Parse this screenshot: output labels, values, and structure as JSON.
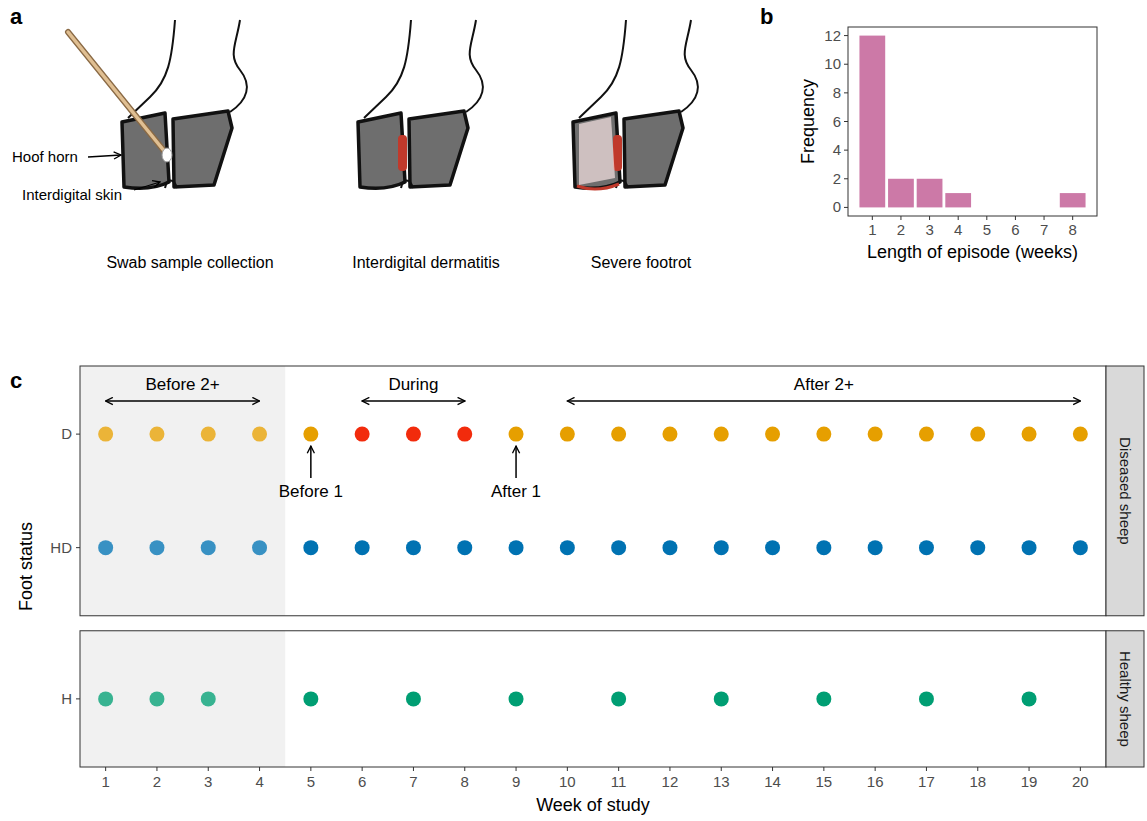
{
  "diagram": {
    "panel_label": "a",
    "labels": [
      "Hoof horn",
      "Interdigital skin"
    ],
    "captions": [
      "Swab sample collection",
      "Interdigital dermatitis",
      "Severe footrot"
    ]
  },
  "chart_data": [
    {
      "panel_label": "b",
      "type": "bar",
      "x": [
        1,
        2,
        3,
        4,
        5,
        6,
        7,
        8
      ],
      "values": [
        12,
        2,
        2,
        1,
        0,
        0,
        0,
        1
      ],
      "color": "#CC79A7",
      "x_label": "Length of episode (weeks)",
      "y_label": "Frequency",
      "xlim": [
        0.15,
        8.85
      ],
      "xticks": [
        1,
        2,
        3,
        4,
        5,
        6,
        7,
        8
      ],
      "ylim": [
        -0.6,
        12.6
      ],
      "yticks": [
        0,
        2,
        4,
        6,
        8,
        10,
        12
      ],
      "grid": false
    },
    {
      "panel_label": "c",
      "type": "scatter",
      "x_label": "Week of study",
      "y_label": "Foot status",
      "xlim": [
        0.5,
        20.5
      ],
      "xticks": [
        1,
        2,
        3,
        4,
        5,
        6,
        7,
        8,
        9,
        10,
        11,
        12,
        13,
        14,
        15,
        16,
        17,
        18,
        19,
        20
      ],
      "grid": false,
      "shaded": [
        0.5,
        4.5
      ],
      "facets": [
        {
          "label": "Diseased sheep",
          "series": [
            {
              "name": "D",
              "x": [
                1,
                2,
                3,
                4,
                5,
                6,
                7,
                8,
                9,
                10,
                11,
                12,
                13,
                14,
                15,
                16,
                17,
                18,
                19,
                20
              ],
              "colors": [
                "#E69F00",
                "#E69F00",
                "#E69F00",
                "#E69F00",
                "#E69F00",
                "#F22B0C",
                "#F22B0C",
                "#F22B0C",
                "#E69F00",
                "#E69F00",
                "#E69F00",
                "#E69F00",
                "#E69F00",
                "#E69F00",
                "#E69F00",
                "#E69F00",
                "#E69F00",
                "#E69F00",
                "#E69F00",
                "#E69F00"
              ]
            },
            {
              "name": "HD",
              "x": [
                1,
                2,
                3,
                4,
                5,
                6,
                7,
                8,
                9,
                10,
                11,
                12,
                13,
                14,
                15,
                16,
                17,
                18,
                19,
                20
              ],
              "color": "#0072B2"
            }
          ]
        },
        {
          "label": "Healthy sheep",
          "series": [
            {
              "name": "H",
              "x": [
                1,
                2,
                3,
                5,
                7,
                9,
                11,
                13,
                15,
                17,
                19
              ],
              "color": "#009E73"
            }
          ]
        }
      ],
      "annotations": [
        {
          "text": "Before 2+",
          "from": 1,
          "to": 4
        },
        {
          "text": "During",
          "from": 6,
          "to": 8
        },
        {
          "text": "After 2+",
          "from": 10,
          "to": 20
        },
        {
          "text": "Before 1",
          "at": 5
        },
        {
          "text": "After 1",
          "at": 9
        }
      ]
    }
  ]
}
